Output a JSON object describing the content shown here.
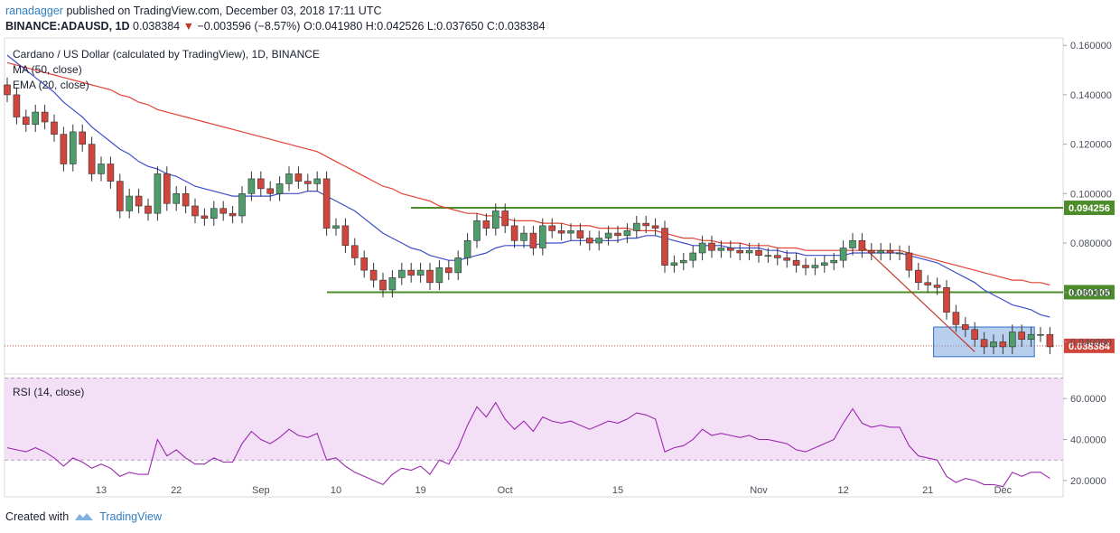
{
  "header": {
    "author": "ranadagger",
    "published_text": "published on TradingView.com, December 03, 2018 17:11 UTC",
    "symbol": "BINANCE:ADAUSD, 1D",
    "last": "0.038384",
    "change_arrow": "▼",
    "change": "−0.003596 (−8.57%)",
    "ohlc": "O:0.041980 H:0.042526 L:0.037650 C:0.038384"
  },
  "footer": {
    "created_with": "Created with",
    "brand": "TradingView"
  },
  "colors": {
    "up": "#4f9d6a",
    "down": "#d0463c",
    "ma50": "#e34234",
    "ema20": "#3d4dc9",
    "support": "#4d8c2b",
    "rsi": "#9c27b0",
    "rsi_band": "#f3e0f7",
    "box": "#7fa8e0"
  },
  "chart_data": [
    {
      "type": "candlestick",
      "title": "Cardano / US Dollar (calculated by TradingView), 1D, BINANCE",
      "legend": [
        "MA (50, close)",
        "EMA (20, close)"
      ],
      "x_tick_labels": [
        "13",
        "22",
        "Sep",
        "10",
        "19",
        "Oct",
        "15",
        "Nov",
        "12",
        "21",
        "Dec"
      ],
      "y_tick_labels": [
        "0.160000",
        "0.140000",
        "0.120000",
        "0.100000",
        "0.080000",
        "0.060000",
        "0.040000"
      ],
      "ylim": [
        0.027,
        0.163
      ],
      "grid": false,
      "price_levels": [
        {
          "value": 0.094256,
          "label": "0.094256",
          "color": "#4d8c2b"
        },
        {
          "value": 0.060105,
          "label": "0.060105",
          "color": "#4d8c2b"
        },
        {
          "value": 0.038384,
          "label": "0.038384",
          "color": "#d0463c"
        }
      ],
      "candles_close": [
        0.14,
        0.131,
        0.128,
        0.133,
        0.129,
        0.124,
        0.112,
        0.125,
        0.12,
        0.108,
        0.112,
        0.105,
        0.093,
        0.099,
        0.095,
        0.092,
        0.108,
        0.096,
        0.1,
        0.095,
        0.091,
        0.09,
        0.094,
        0.092,
        0.091,
        0.1,
        0.106,
        0.102,
        0.1,
        0.104,
        0.108,
        0.105,
        0.104,
        0.106,
        0.086,
        0.087,
        0.079,
        0.074,
        0.069,
        0.065,
        0.061,
        0.066,
        0.069,
        0.067,
        0.069,
        0.064,
        0.07,
        0.068,
        0.074,
        0.081,
        0.089,
        0.086,
        0.093,
        0.087,
        0.081,
        0.084,
        0.078,
        0.087,
        0.085,
        0.084,
        0.085,
        0.082,
        0.08,
        0.082,
        0.084,
        0.083,
        0.085,
        0.088,
        0.087,
        0.086,
        0.071,
        0.072,
        0.073,
        0.076,
        0.08,
        0.077,
        0.078,
        0.077,
        0.076,
        0.077,
        0.075,
        0.075,
        0.074,
        0.073,
        0.071,
        0.07,
        0.071,
        0.072,
        0.073,
        0.078,
        0.081,
        0.077,
        0.076,
        0.077,
        0.076,
        0.076,
        0.069,
        0.064,
        0.063,
        0.062,
        0.052,
        0.047,
        0.045,
        0.041,
        0.038,
        0.04,
        0.038,
        0.044,
        0.041,
        0.043,
        0.043,
        0.038
      ],
      "ma50": [
        0.153,
        0.152,
        0.151,
        0.15,
        0.149,
        0.148,
        0.147,
        0.146,
        0.145,
        0.144,
        0.143,
        0.142,
        0.14,
        0.139,
        0.137,
        0.136,
        0.134,
        0.133,
        0.132,
        0.131,
        0.13,
        0.129,
        0.128,
        0.127,
        0.126,
        0.125,
        0.124,
        0.123,
        0.122,
        0.121,
        0.12,
        0.119,
        0.118,
        0.117,
        0.115,
        0.113,
        0.111,
        0.109,
        0.107,
        0.105,
        0.103,
        0.102,
        0.1,
        0.099,
        0.098,
        0.097,
        0.095,
        0.094,
        0.093,
        0.092,
        0.092,
        0.091,
        0.091,
        0.09,
        0.089,
        0.089,
        0.089,
        0.088,
        0.088,
        0.088,
        0.087,
        0.087,
        0.087,
        0.086,
        0.086,
        0.086,
        0.086,
        0.085,
        0.085,
        0.085,
        0.084,
        0.083,
        0.082,
        0.082,
        0.081,
        0.081,
        0.08,
        0.08,
        0.08,
        0.079,
        0.079,
        0.079,
        0.078,
        0.078,
        0.078,
        0.077,
        0.077,
        0.077,
        0.077,
        0.077,
        0.077,
        0.077,
        0.077,
        0.077,
        0.077,
        0.077,
        0.076,
        0.075,
        0.074,
        0.073,
        0.072,
        0.071,
        0.07,
        0.069,
        0.068,
        0.067,
        0.066,
        0.065,
        0.065,
        0.064,
        0.064,
        0.063
      ],
      "ema20": [
        0.156,
        0.153,
        0.15,
        0.147,
        0.144,
        0.141,
        0.137,
        0.134,
        0.131,
        0.127,
        0.124,
        0.121,
        0.118,
        0.116,
        0.113,
        0.111,
        0.11,
        0.108,
        0.107,
        0.105,
        0.103,
        0.102,
        0.101,
        0.1,
        0.099,
        0.099,
        0.099,
        0.099,
        0.099,
        0.1,
        0.1,
        0.1,
        0.101,
        0.101,
        0.099,
        0.097,
        0.095,
        0.093,
        0.09,
        0.087,
        0.084,
        0.082,
        0.08,
        0.078,
        0.077,
        0.075,
        0.074,
        0.073,
        0.073,
        0.074,
        0.075,
        0.076,
        0.078,
        0.079,
        0.079,
        0.079,
        0.079,
        0.08,
        0.08,
        0.08,
        0.081,
        0.081,
        0.081,
        0.081,
        0.081,
        0.081,
        0.082,
        0.082,
        0.083,
        0.083,
        0.082,
        0.081,
        0.08,
        0.079,
        0.079,
        0.079,
        0.079,
        0.078,
        0.078,
        0.078,
        0.078,
        0.077,
        0.077,
        0.076,
        0.076,
        0.075,
        0.075,
        0.075,
        0.075,
        0.075,
        0.076,
        0.076,
        0.076,
        0.076,
        0.076,
        0.076,
        0.075,
        0.074,
        0.073,
        0.072,
        0.07,
        0.068,
        0.066,
        0.064,
        0.061,
        0.059,
        0.057,
        0.055,
        0.054,
        0.053,
        0.051,
        0.05
      ]
    },
    {
      "type": "line",
      "title": "RSI (14, close)",
      "y_tick_labels": [
        "60.0000",
        "40.0000",
        "20.0000"
      ],
      "ylim": [
        12,
        72
      ],
      "band": [
        30,
        70
      ],
      "values": [
        36,
        35,
        34,
        36,
        34,
        31,
        27,
        31,
        29,
        26,
        28,
        26,
        22,
        24,
        23,
        23,
        40,
        32,
        35,
        31,
        28,
        28,
        31,
        29,
        29,
        38,
        44,
        40,
        38,
        41,
        45,
        42,
        41,
        43,
        30,
        31,
        27,
        24,
        22,
        20,
        18,
        23,
        26,
        25,
        27,
        23,
        30,
        28,
        36,
        47,
        56,
        51,
        58,
        50,
        45,
        49,
        44,
        51,
        49,
        48,
        49,
        47,
        45,
        47,
        49,
        48,
        50,
        53,
        52,
        50,
        34,
        36,
        37,
        40,
        45,
        42,
        43,
        42,
        41,
        42,
        40,
        40,
        39,
        38,
        35,
        34,
        36,
        38,
        40,
        48,
        55,
        48,
        46,
        47,
        46,
        46,
        37,
        32,
        31,
        30,
        22,
        19,
        21,
        20,
        18,
        18,
        17,
        24,
        22,
        24,
        24,
        21
      ]
    }
  ]
}
